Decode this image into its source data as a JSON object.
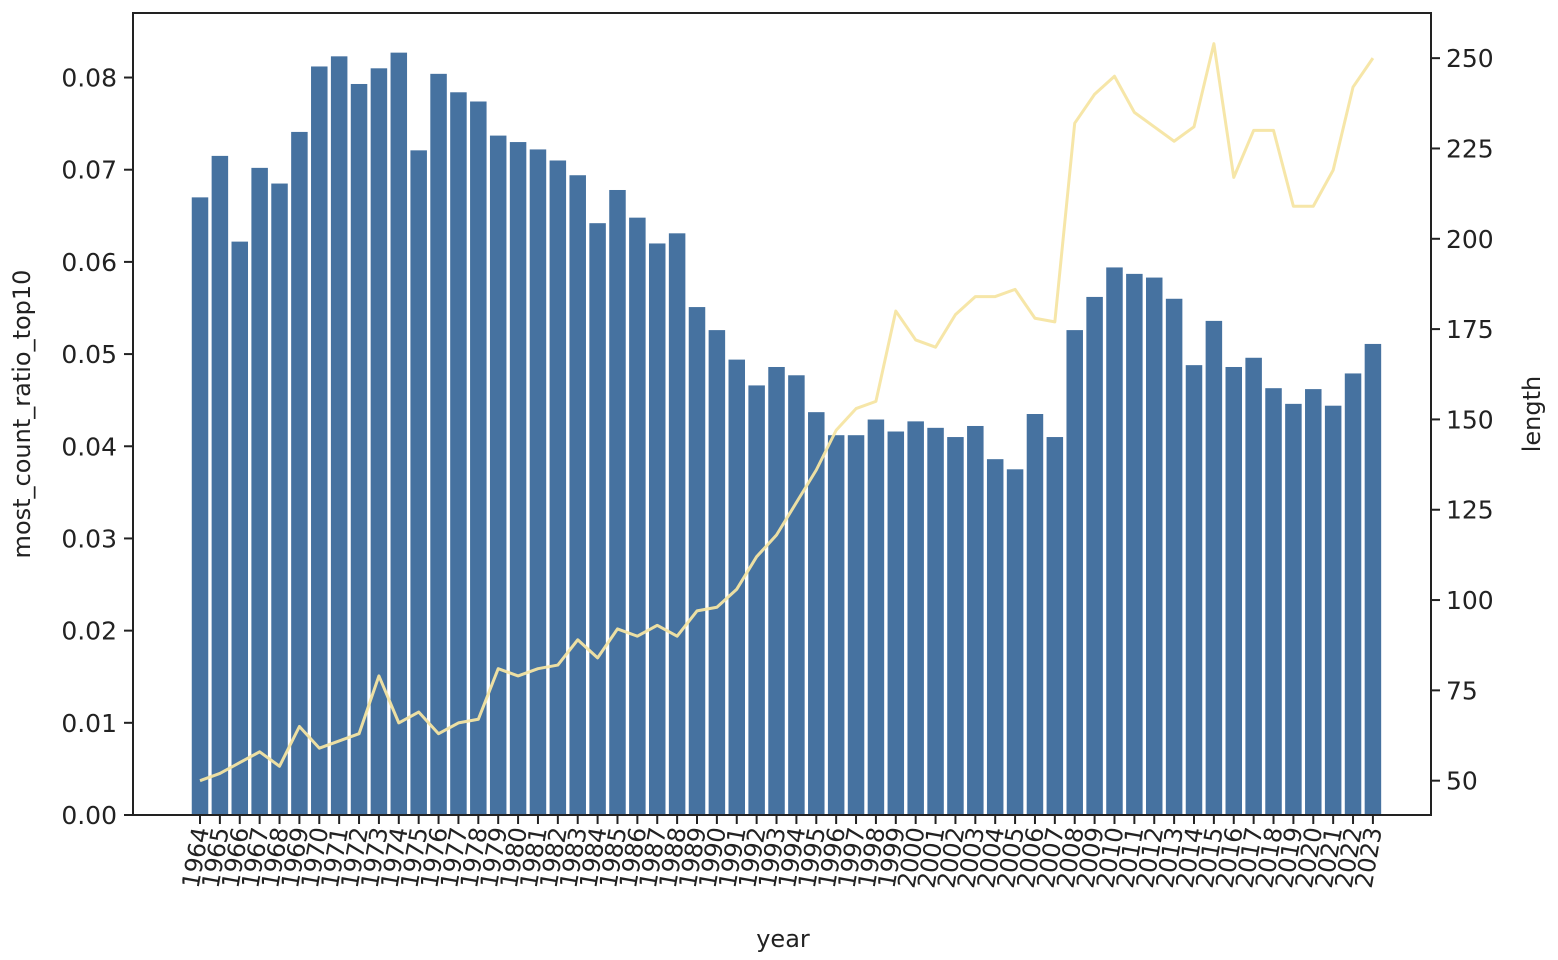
{
  "chart_data": {
    "type": "bar",
    "title": "",
    "xlabel": "year",
    "ylabel": "most_count_ratio_top10",
    "y2label": "length",
    "ylim": [
      0,
      0.087
    ],
    "y2lim": [
      40.5,
      262.5
    ],
    "yticks": [
      0.0,
      0.01,
      0.02,
      0.03,
      0.04,
      0.05,
      0.06,
      0.07,
      0.08
    ],
    "ytick_labels": [
      "0.00",
      "0.01",
      "0.02",
      "0.03",
      "0.04",
      "0.05",
      "0.06",
      "0.07",
      "0.08"
    ],
    "y2ticks": [
      50,
      75,
      100,
      125,
      150,
      175,
      200,
      225,
      250
    ],
    "y2tick_labels": [
      "50",
      "75",
      "100",
      "125",
      "150",
      "175",
      "200",
      "225",
      "250"
    ],
    "grid": false,
    "legend": "none",
    "categories": [
      "1964",
      "1965",
      "1966",
      "1967",
      "1968",
      "1969",
      "1970",
      "1971",
      "1972",
      "1973",
      "1974",
      "1975",
      "1976",
      "1977",
      "1978",
      "1979",
      "1980",
      "1981",
      "1982",
      "1983",
      "1984",
      "1985",
      "1986",
      "1987",
      "1988",
      "1989",
      "1990",
      "1991",
      "1992",
      "1993",
      "1994",
      "1995",
      "1996",
      "1997",
      "1998",
      "1999",
      "2000",
      "2001",
      "2002",
      "2003",
      "2004",
      "2005",
      "2006",
      "2007",
      "2008",
      "2009",
      "2010",
      "2011",
      "2012",
      "2013",
      "2014",
      "2015",
      "2016",
      "2017",
      "2018",
      "2019",
      "2020",
      "2021",
      "2022",
      "2023"
    ],
    "series": [
      {
        "type": "bar",
        "axis": "left",
        "color": "#4672a0",
        "values": [
          0.067,
          0.0715,
          0.0622,
          0.0702,
          0.0685,
          0.0741,
          0.0812,
          0.0823,
          0.0793,
          0.081,
          0.0827,
          0.0721,
          0.0804,
          0.0784,
          0.0774,
          0.0737,
          0.073,
          0.0722,
          0.071,
          0.0694,
          0.0642,
          0.0678,
          0.0648,
          0.062,
          0.0631,
          0.0551,
          0.0526,
          0.0494,
          0.0466,
          0.0486,
          0.0477,
          0.0437,
          0.0412,
          0.0412,
          0.0429,
          0.0416,
          0.0427,
          0.042,
          0.041,
          0.0422,
          0.0386,
          0.0375,
          0.0435,
          0.041,
          0.0526,
          0.0562,
          0.0594,
          0.0587,
          0.0583,
          0.056,
          0.0488,
          0.0536,
          0.0486,
          0.0496,
          0.0463,
          0.0446,
          0.0462,
          0.0444,
          0.0479,
          0.0511
        ]
      },
      {
        "type": "line",
        "axis": "right",
        "color": "#f6e5a3",
        "values": [
          50,
          52,
          55,
          58,
          54,
          65,
          59,
          61,
          63,
          79,
          66,
          69,
          63,
          66,
          67,
          81,
          79,
          81,
          82,
          89,
          84,
          92,
          90,
          93,
          90,
          97,
          98,
          103,
          112,
          118,
          127,
          136,
          147,
          153,
          155,
          180,
          172,
          170,
          179,
          184,
          184,
          186,
          178,
          177,
          232,
          240,
          245,
          235,
          231,
          227,
          231,
          254,
          217,
          230,
          230,
          209,
          209,
          219,
          242,
          250
        ]
      }
    ]
  }
}
